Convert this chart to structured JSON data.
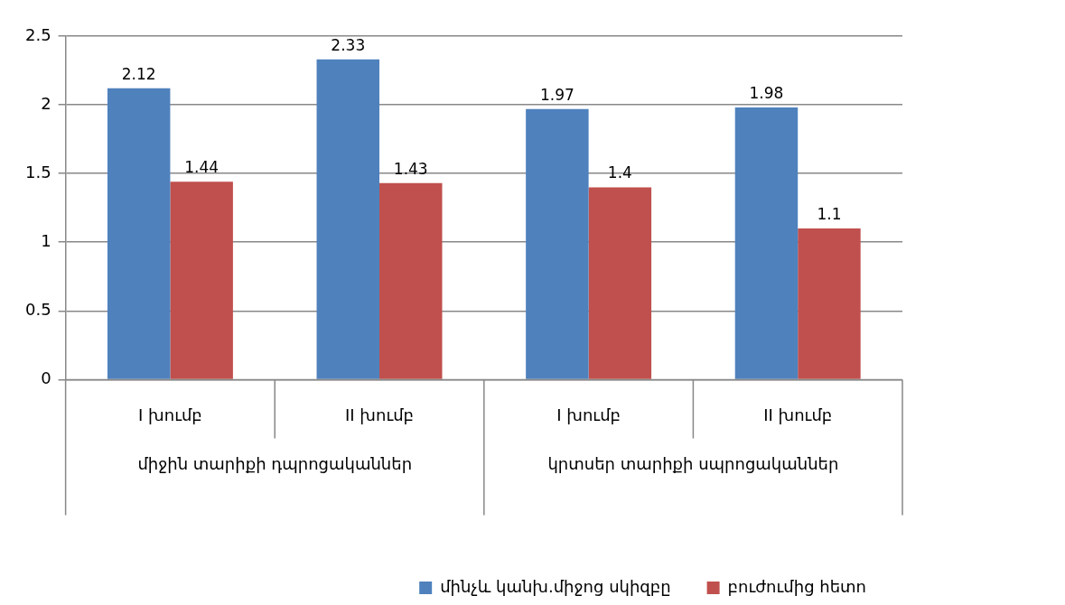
{
  "chart_data": {
    "type": "bar",
    "categories": [
      "I խումբ",
      "II խումբ",
      "I խումբ",
      "II խումբ"
    ],
    "series": [
      {
        "name": "մինչև կանխ.միջոց սկիզբը",
        "color": "#4f81bd",
        "values": [
          2.12,
          2.33,
          1.97,
          1.98
        ]
      },
      {
        "name": "բուժումից հետո",
        "color": "#c0504d",
        "values": [
          1.44,
          1.43,
          1.4,
          1.1
        ]
      }
    ],
    "annotations": [
      "միջին տարիքի դպրոցականներ",
      "կրտսեր տարիքի սպրոցականներ"
    ],
    "ylim": [
      0,
      2.5
    ],
    "yticks": [
      0,
      0.5,
      1,
      1.5,
      2,
      2.5
    ],
    "grid": "y",
    "legend": "bottom",
    "data_labels": true
  }
}
